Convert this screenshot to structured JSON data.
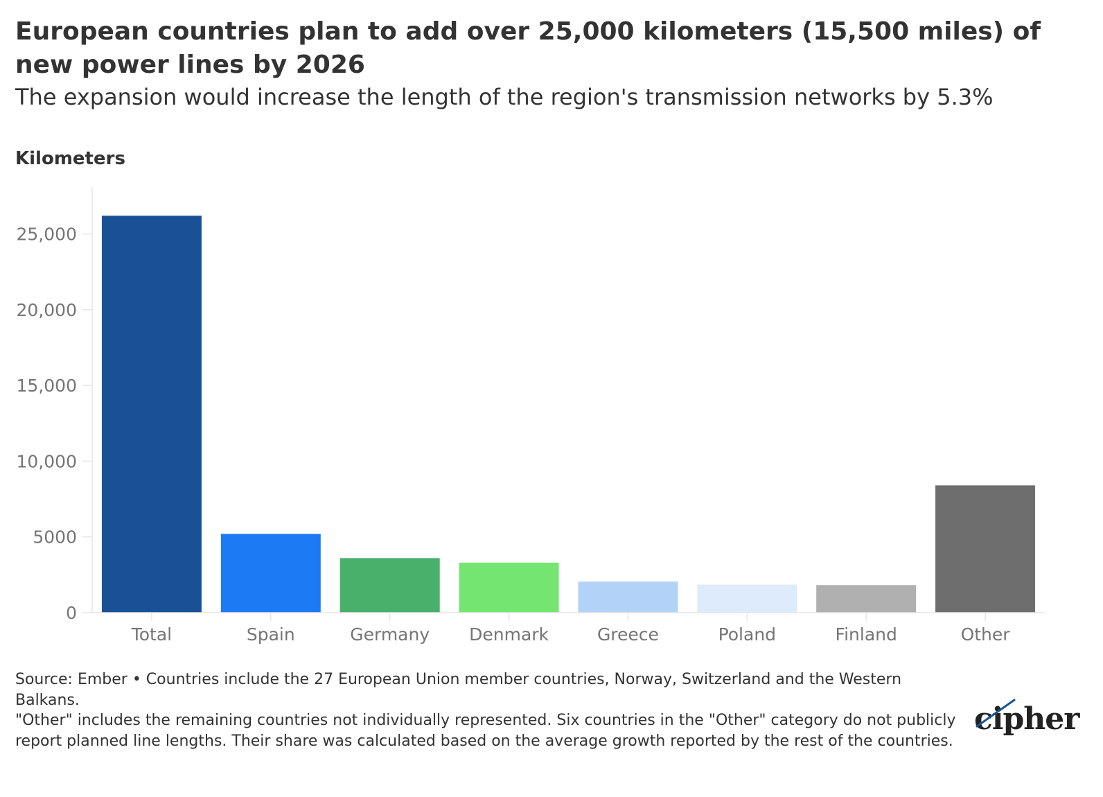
{
  "header": {
    "title": "European countries plan to add over 25,000 kilometers (15,500 miles) of new power lines by 2026",
    "subtitle": "The expansion would increase the length of the region's transmission networks by 5.3%"
  },
  "chart_data": {
    "type": "bar",
    "ylabel": "Kilometers",
    "xlabel": "",
    "ylim": [
      0,
      28000
    ],
    "yticks": [
      0,
      5000,
      10000,
      15000,
      20000,
      25000
    ],
    "ytick_labels": [
      "0",
      "5000",
      "10,000",
      "15,000",
      "20,000",
      "25,000"
    ],
    "categories": [
      "Total",
      "Spain",
      "Germany",
      "Denmark",
      "Greece",
      "Poland",
      "Finland",
      "Other"
    ],
    "values": [
      26200,
      5200,
      3600,
      3300,
      2050,
      1850,
      1820,
      8400
    ],
    "colors": [
      "#1a5196",
      "#1d7af5",
      "#48b06b",
      "#74e571",
      "#b2d2f8",
      "#ddebfd",
      "#b0b0b0",
      "#6e6e6e"
    ],
    "grid": false,
    "legend": "none"
  },
  "footer": {
    "source": "Source: Ember • Countries include the 27 European Union member countries, Norway, Switzerland and the Western Balkans.",
    "note": "\"Other\" includes the remaining countries not individually represented. Six countries in the \"Other\" category do not publicly report planned line lengths. Their share was calculated based on the average growth reported by the rest of the countries."
  },
  "brand": {
    "logo_text": "cipher",
    "axis_color": "#e6e6e6",
    "tick_label_color": "#757575"
  }
}
